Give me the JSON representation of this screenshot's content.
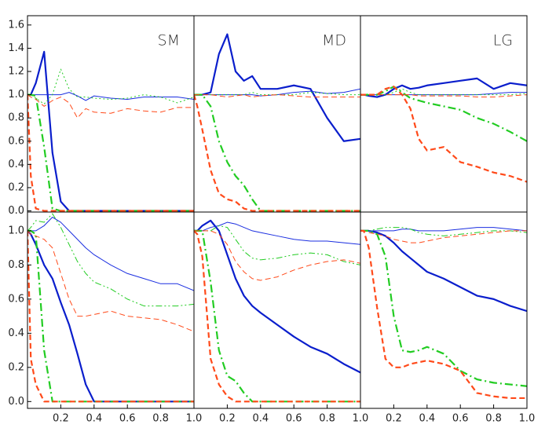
{
  "chart_data": [
    {
      "type": "line",
      "title": "SM",
      "x": [
        0,
        0.02,
        0.05,
        0.1,
        0.15,
        0.2,
        0.25,
        0.3,
        0.35,
        0.4,
        0.5,
        0.6,
        0.7,
        0.8,
        0.9,
        1.0
      ],
      "xlim": [
        0,
        1
      ],
      "ylim": [
        -0.01,
        1.68
      ],
      "yticks": [
        {
          "value": 0,
          "label": "0.0"
        },
        0.2,
        0.4,
        0.6,
        0.8,
        {
          "value": 1,
          "label": "1.0"
        },
        1.2,
        1.4,
        1.6
      ],
      "series": [
        {
          "color": "#0a1ecc",
          "weight": "thick",
          "dash": "solid",
          "values": [
            1.0,
            1.0,
            1.1,
            1.37,
            0.5,
            0.08,
            0,
            0,
            0,
            0,
            0,
            0,
            0,
            0,
            0,
            0
          ]
        },
        {
          "color": "#1a2ee0",
          "weight": "thin",
          "dash": "solid",
          "values": [
            1.0,
            1.0,
            1.0,
            1.0,
            1.0,
            1.0,
            1.02,
            0.99,
            0.95,
            0.99,
            0.97,
            0.96,
            0.98,
            0.98,
            0.98,
            0.96
          ]
        },
        {
          "color": "#22cc22",
          "weight": "thick",
          "dash": "dashdot",
          "values": [
            1.0,
            1.0,
            0.99,
            0.55,
            0.02,
            0,
            0,
            0,
            0,
            0,
            0,
            0,
            0,
            0,
            0,
            0
          ]
        },
        {
          "color": "#22cc22",
          "weight": "thin",
          "dash": "dotted",
          "values": [
            1.0,
            1.0,
            0.97,
            0.92,
            1.0,
            1.22,
            1.05,
            0.98,
            0.98,
            0.97,
            0.96,
            0.97,
            1.0,
            0.98,
            0.93,
            0.98
          ]
        },
        {
          "color": "#ff4a1a",
          "weight": "thick",
          "dash": "dashed",
          "values": [
            1.0,
            0.3,
            0.02,
            0,
            0,
            0,
            0,
            0,
            0,
            0,
            0,
            0,
            0,
            0,
            0,
            0
          ]
        },
        {
          "color": "#ff4a1a",
          "weight": "thin",
          "dash": "dashed",
          "values": [
            1.0,
            0.98,
            0.96,
            0.9,
            0.95,
            0.98,
            0.93,
            0.8,
            0.88,
            0.85,
            0.84,
            0.88,
            0.86,
            0.85,
            0.89,
            0.89
          ]
        }
      ]
    },
    {
      "type": "line",
      "title": "MD",
      "x": [
        0,
        0.02,
        0.05,
        0.1,
        0.15,
        0.2,
        0.25,
        0.3,
        0.35,
        0.4,
        0.5,
        0.6,
        0.7,
        0.8,
        0.9,
        1.0
      ],
      "xlim": [
        0,
        1
      ],
      "ylim": [
        -0.01,
        1.68
      ],
      "series": [
        {
          "color": "#0a1ecc",
          "weight": "thick",
          "dash": "solid",
          "values": [
            1.0,
            1.0,
            1.0,
            1.02,
            1.35,
            1.52,
            1.2,
            1.12,
            1.16,
            1.05,
            1.05,
            1.08,
            1.05,
            0.8,
            0.6,
            0.62
          ]
        },
        {
          "color": "#1a2ee0",
          "weight": "thin",
          "dash": "solid",
          "values": [
            1.0,
            1.0,
            1.0,
            1.0,
            1.0,
            1.0,
            1.0,
            1.0,
            1.0,
            0.99,
            1.0,
            1.02,
            1.03,
            1.01,
            1.02,
            1.05
          ]
        },
        {
          "color": "#22cc22",
          "weight": "thick",
          "dash": "dashdot",
          "values": [
            1.0,
            1.0,
            1.0,
            0.9,
            0.6,
            0.42,
            0.3,
            0.22,
            0.1,
            0,
            0,
            0,
            0,
            0,
            0,
            0
          ]
        },
        {
          "color": "#22cc22",
          "weight": "thin",
          "dash": "dotted",
          "values": [
            1.0,
            1.0,
            1.0,
            1.0,
            1.0,
            1.0,
            1.0,
            1.0,
            1.02,
            1.0,
            1.0,
            1.0,
            1.02,
            1.01,
            1.0,
            1.0
          ]
        },
        {
          "color": "#ff4a1a",
          "weight": "thick",
          "dash": "dashed",
          "values": [
            1.0,
            0.9,
            0.7,
            0.35,
            0.15,
            0.1,
            0.08,
            0.02,
            0,
            0,
            0,
            0,
            0,
            0,
            0,
            0
          ]
        },
        {
          "color": "#ff4a1a",
          "weight": "thin",
          "dash": "dashed",
          "values": [
            1.0,
            1.0,
            1.0,
            1.0,
            0.99,
            0.98,
            0.99,
            1.0,
            0.98,
            0.99,
            1.0,
            0.99,
            0.98,
            0.98,
            0.98,
            0.98
          ]
        }
      ]
    },
    {
      "type": "line",
      "title": "LG",
      "x": [
        0,
        0.02,
        0.05,
        0.1,
        0.15,
        0.2,
        0.25,
        0.3,
        0.35,
        0.4,
        0.5,
        0.6,
        0.7,
        0.8,
        0.9,
        1.0
      ],
      "xlim": [
        0,
        1
      ],
      "ylim": [
        -0.01,
        1.68
      ],
      "series": [
        {
          "color": "#0a1ecc",
          "weight": "thick",
          "dash": "solid",
          "values": [
            1.0,
            1.0,
            0.99,
            0.98,
            1.0,
            1.05,
            1.08,
            1.05,
            1.06,
            1.08,
            1.1,
            1.12,
            1.14,
            1.05,
            1.1,
            1.08
          ]
        },
        {
          "color": "#1a2ee0",
          "weight": "thin",
          "dash": "solid",
          "values": [
            1.0,
            1.0,
            1.0,
            1.0,
            1.0,
            1.0,
            1.0,
            1.0,
            1.0,
            1.0,
            1.0,
            1.0,
            1.0,
            1.01,
            1.02,
            1.02
          ]
        },
        {
          "color": "#22cc22",
          "weight": "thick",
          "dash": "dashdot",
          "values": [
            1.0,
            1.0,
            1.0,
            1.0,
            1.03,
            1.07,
            1.02,
            0.97,
            0.95,
            0.93,
            0.9,
            0.87,
            0.8,
            0.75,
            0.68,
            0.6
          ]
        },
        {
          "color": "#22cc22",
          "weight": "thin",
          "dash": "dotted",
          "values": [
            1.0,
            1.0,
            1.0,
            1.0,
            1.0,
            1.02,
            1.05,
            1.02,
            1.0,
            1.0,
            1.0,
            1.0,
            1.0,
            1.0,
            1.0,
            1.01
          ]
        },
        {
          "color": "#ff4a1a",
          "weight": "thick",
          "dash": "dashed",
          "values": [
            1.0,
            1.0,
            1.0,
            1.0,
            1.05,
            1.07,
            1.0,
            0.88,
            0.62,
            0.52,
            0.55,
            0.42,
            0.38,
            0.33,
            0.3,
            0.25
          ]
        },
        {
          "color": "#ff4a1a",
          "weight": "thin",
          "dash": "dashed",
          "values": [
            1.0,
            1.0,
            1.0,
            1.0,
            1.0,
            1.0,
            1.0,
            1.0,
            0.99,
            0.99,
            0.99,
            0.99,
            0.98,
            0.98,
            0.99,
            1.0
          ]
        }
      ]
    },
    {
      "type": "line",
      "x": [
        0,
        0.02,
        0.05,
        0.1,
        0.15,
        0.2,
        0.25,
        0.3,
        0.35,
        0.4,
        0.5,
        0.6,
        0.7,
        0.8,
        0.9,
        1.0
      ],
      "xlim": [
        0,
        1
      ],
      "ylim": [
        -0.04,
        1.11
      ],
      "xticks": [
        0.2,
        0.4,
        0.6,
        0.8,
        {
          "value": 1,
          "label": "1.0"
        }
      ],
      "yticks": [
        {
          "value": 0,
          "label": "0.0"
        },
        0.2,
        0.4,
        0.6,
        0.8,
        {
          "value": 1,
          "label": "1.0"
        }
      ],
      "series": [
        {
          "color": "#0a1ecc",
          "weight": "thick",
          "dash": "solid",
          "values": [
            1.0,
            0.98,
            0.92,
            0.8,
            0.72,
            0.58,
            0.45,
            0.28,
            0.1,
            0,
            0,
            0,
            0,
            0,
            0,
            0
          ]
        },
        {
          "color": "#1a2ee0",
          "weight": "thin",
          "dash": "solid",
          "values": [
            1.0,
            1.0,
            1.0,
            1.03,
            1.08,
            1.05,
            1.0,
            0.95,
            0.9,
            0.86,
            0.8,
            0.75,
            0.72,
            0.69,
            0.69,
            0.65
          ]
        },
        {
          "color": "#22cc22",
          "weight": "thick",
          "dash": "dashdot",
          "values": [
            1.0,
            1.0,
            0.98,
            0.3,
            0,
            0,
            0,
            0,
            0,
            0,
            0,
            0,
            0,
            0,
            0,
            0
          ]
        },
        {
          "color": "#22cc22",
          "weight": "thin",
          "dash": "dashdotdot",
          "values": [
            1.0,
            1.02,
            1.06,
            1.05,
            1.1,
            1.02,
            0.92,
            0.82,
            0.75,
            0.7,
            0.66,
            0.6,
            0.56,
            0.56,
            0.56,
            0.57
          ]
        },
        {
          "color": "#ff4a1a",
          "weight": "thick",
          "dash": "dashed",
          "values": [
            1.0,
            0.25,
            0.1,
            0,
            0,
            0,
            0,
            0,
            0,
            0,
            0,
            0,
            0,
            0,
            0,
            0
          ]
        },
        {
          "color": "#ff4a1a",
          "weight": "thin",
          "dash": "dashed",
          "values": [
            1.0,
            0.98,
            0.97,
            0.95,
            0.9,
            0.75,
            0.6,
            0.5,
            0.5,
            0.51,
            0.53,
            0.5,
            0.49,
            0.48,
            0.45,
            0.41
          ]
        }
      ]
    },
    {
      "type": "line",
      "x": [
        0,
        0.02,
        0.05,
        0.1,
        0.15,
        0.2,
        0.25,
        0.3,
        0.35,
        0.4,
        0.5,
        0.6,
        0.7,
        0.8,
        0.9,
        1.0
      ],
      "xlim": [
        0,
        1
      ],
      "ylim": [
        -0.04,
        1.11
      ],
      "xticks": [
        0.2,
        0.4,
        0.6,
        0.8,
        {
          "value": 1,
          "label": "1.0"
        }
      ],
      "series": [
        {
          "color": "#0a1ecc",
          "weight": "thick",
          "dash": "solid",
          "values": [
            1.0,
            1.0,
            1.03,
            1.06,
            1.0,
            0.86,
            0.72,
            0.62,
            0.56,
            0.52,
            0.45,
            0.38,
            0.32,
            0.28,
            0.22,
            0.17
          ]
        },
        {
          "color": "#1a2ee0",
          "weight": "thin",
          "dash": "solid",
          "values": [
            1.0,
            1.0,
            1.0,
            1.02,
            1.03,
            1.05,
            1.04,
            1.02,
            1.0,
            0.99,
            0.97,
            0.95,
            0.94,
            0.94,
            0.93,
            0.92
          ]
        },
        {
          "color": "#22cc22",
          "weight": "thick",
          "dash": "dashdot",
          "values": [
            1.0,
            1.0,
            1.0,
            0.7,
            0.3,
            0.15,
            0.12,
            0.05,
            0,
            0,
            0,
            0,
            0,
            0,
            0,
            0
          ]
        },
        {
          "color": "#22cc22",
          "weight": "thin",
          "dash": "dashdotdot",
          "values": [
            1.0,
            1.0,
            1.0,
            1.0,
            1.03,
            1.02,
            0.95,
            0.88,
            0.84,
            0.83,
            0.84,
            0.86,
            0.87,
            0.86,
            0.82,
            0.8
          ]
        },
        {
          "color": "#ff4a1a",
          "weight": "thick",
          "dash": "dashed",
          "values": [
            1.0,
            0.98,
            0.85,
            0.25,
            0.1,
            0.03,
            0,
            0,
            0,
            0,
            0,
            0,
            0,
            0,
            0,
            0
          ]
        },
        {
          "color": "#ff4a1a",
          "weight": "thin",
          "dash": "dashed",
          "values": [
            1.0,
            1.0,
            1.0,
            1.0,
            0.98,
            0.92,
            0.82,
            0.76,
            0.72,
            0.71,
            0.73,
            0.77,
            0.8,
            0.82,
            0.83,
            0.81
          ]
        }
      ]
    },
    {
      "type": "line",
      "x": [
        0,
        0.02,
        0.05,
        0.1,
        0.15,
        0.2,
        0.25,
        0.3,
        0.35,
        0.4,
        0.5,
        0.6,
        0.7,
        0.8,
        0.9,
        1.0
      ],
      "xlim": [
        0,
        1
      ],
      "ylim": [
        -0.04,
        1.11
      ],
      "xticks": [
        0.2,
        0.4,
        0.6,
        0.8,
        {
          "value": 1,
          "label": "1.0"
        }
      ],
      "series": [
        {
          "color": "#0a1ecc",
          "weight": "thick",
          "dash": "solid",
          "values": [
            1.0,
            1.0,
            1.0,
            0.99,
            0.97,
            0.93,
            0.88,
            0.84,
            0.8,
            0.76,
            0.72,
            0.67,
            0.62,
            0.6,
            0.56,
            0.53
          ]
        },
        {
          "color": "#1a2ee0",
          "weight": "thin",
          "dash": "solid",
          "values": [
            1.0,
            1.0,
            1.0,
            1.0,
            1.0,
            1.0,
            1.01,
            1.01,
            1.0,
            1.0,
            1.0,
            1.01,
            1.02,
            1.02,
            1.01,
            1.0
          ]
        },
        {
          "color": "#22cc22",
          "weight": "thick",
          "dash": "dashdot",
          "values": [
            1.0,
            1.0,
            1.0,
            0.98,
            0.85,
            0.5,
            0.3,
            0.29,
            0.3,
            0.32,
            0.28,
            0.18,
            0.13,
            0.11,
            0.1,
            0.09
          ]
        },
        {
          "color": "#22cc22",
          "weight": "thin",
          "dash": "dashdotdot",
          "values": [
            1.0,
            1.0,
            1.0,
            1.01,
            1.02,
            1.02,
            1.02,
            1.01,
            0.99,
            0.98,
            0.97,
            0.98,
            0.99,
            1.0,
            1.0,
            0.99
          ]
        },
        {
          "color": "#ff4a1a",
          "weight": "thick",
          "dash": "dashed",
          "values": [
            1.0,
            1.0,
            0.9,
            0.55,
            0.25,
            0.2,
            0.2,
            0.22,
            0.23,
            0.24,
            0.22,
            0.18,
            0.05,
            0.03,
            0.02,
            0.02
          ]
        },
        {
          "color": "#ff4a1a",
          "weight": "thin",
          "dash": "dashed",
          "values": [
            1.0,
            1.0,
            0.99,
            0.98,
            0.97,
            0.95,
            0.94,
            0.93,
            0.93,
            0.94,
            0.96,
            0.97,
            0.98,
            0.99,
            1.0,
            1.0
          ]
        }
      ]
    }
  ]
}
